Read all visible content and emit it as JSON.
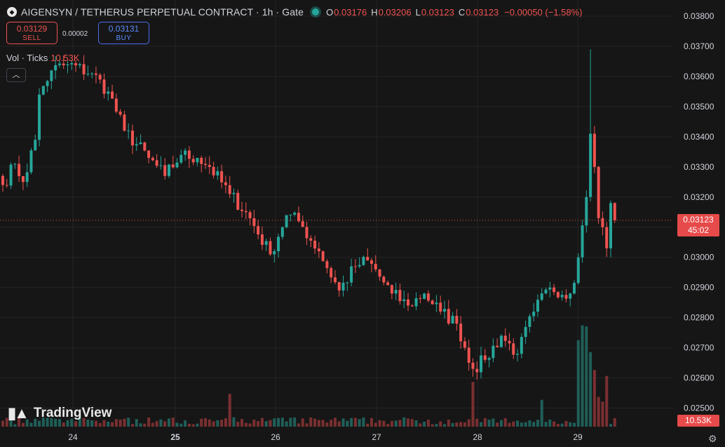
{
  "header": {
    "symbol_icon": "diamond-icon",
    "title": "AIGENSYN / TETHERUS PERPETUAL CONTRACT · 1h · Gate",
    "ohlc": [
      {
        "label": "O",
        "value": "0.03176"
      },
      {
        "label": "H",
        "value": "0.03206"
      },
      {
        "label": "L",
        "value": "0.03123"
      },
      {
        "label": "C",
        "value": "0.03123"
      }
    ],
    "change": "−0.00050 (−1.58%)"
  },
  "trade": {
    "sell_price": "0.03129",
    "sell_label": "SELL",
    "spread": "0.00002",
    "buy_price": "0.03131",
    "buy_label": "BUY"
  },
  "volume_legend": {
    "label": "Vol · Ticks",
    "value": "10.53K"
  },
  "collapse_icon": "chevron-up-icon",
  "logo_text": "TradingView",
  "badges": {
    "price": "0.03123",
    "countdown": "45:02",
    "volume": "10.53K"
  },
  "settings_icon": "gear-icon",
  "colors": {
    "up": "#26a69a",
    "down": "#ef5350",
    "background": "#161616",
    "grid": "#242424"
  },
  "chart_data": {
    "type": "candlestick",
    "y_ticks": [
      "0.02500",
      "0.02600",
      "0.02700",
      "0.02800",
      "0.02900",
      "0.03000",
      "0.03100",
      "0.03200",
      "0.03300",
      "0.03400",
      "0.03500",
      "0.03600",
      "0.03700",
      "0.03800"
    ],
    "ylim": [
      0.0245,
      0.0381
    ],
    "x_ticks": [
      "24",
      "25",
      "26",
      "27",
      "28",
      "29"
    ],
    "last_price": 0.03123,
    "grid": true,
    "anchors": [
      {
        "i": 0,
        "price": 0.0324
      },
      {
        "i": 3,
        "price": 0.0331
      },
      {
        "i": 5,
        "price": 0.0325
      },
      {
        "i": 8,
        "price": 0.0339
      },
      {
        "i": 9,
        "price": 0.0354
      },
      {
        "i": 12,
        "price": 0.0362
      },
      {
        "i": 16,
        "price": 0.0364
      },
      {
        "i": 22,
        "price": 0.0361
      },
      {
        "i": 26,
        "price": 0.0355
      },
      {
        "i": 30,
        "price": 0.0342
      },
      {
        "i": 36,
        "price": 0.0333
      },
      {
        "i": 40,
        "price": 0.0327
      },
      {
        "i": 44,
        "price": 0.0334
      },
      {
        "i": 48,
        "price": 0.0333
      },
      {
        "i": 51,
        "price": 0.033
      },
      {
        "i": 56,
        "price": 0.0321
      },
      {
        "i": 60,
        "price": 0.0315
      },
      {
        "i": 66,
        "price": 0.0301
      },
      {
        "i": 70,
        "price": 0.0314
      },
      {
        "i": 73,
        "price": 0.0312
      },
      {
        "i": 78,
        "price": 0.0302
      },
      {
        "i": 83,
        "price": 0.0289
      },
      {
        "i": 87,
        "price": 0.0297
      },
      {
        "i": 90,
        "price": 0.0299
      },
      {
        "i": 96,
        "price": 0.0288
      },
      {
        "i": 100,
        "price": 0.0284
      },
      {
        "i": 104,
        "price": 0.0288
      },
      {
        "i": 108,
        "price": 0.0282
      },
      {
        "i": 112,
        "price": 0.0278
      },
      {
        "i": 116,
        "price": 0.0263
      },
      {
        "i": 119,
        "price": 0.0266
      },
      {
        "i": 123,
        "price": 0.0274
      },
      {
        "i": 127,
        "price": 0.0268
      },
      {
        "i": 131,
        "price": 0.0282
      },
      {
        "i": 135,
        "price": 0.029
      },
      {
        "i": 140,
        "price": 0.0288
      },
      {
        "i": 142,
        "price": 0.03
      },
      {
        "i": 144,
        "price": 0.032
      },
      {
        "i": 145,
        "price": 0.0341
      },
      {
        "i": 146,
        "price": 0.033
      },
      {
        "i": 147,
        "price": 0.0313
      },
      {
        "i": 148,
        "price": 0.031
      },
      {
        "i": 149,
        "price": 0.0303
      },
      {
        "i": 150,
        "price": 0.0318
      },
      {
        "i": 151,
        "price": 0.03123
      }
    ],
    "spikes": [
      {
        "i": 145,
        "high": 0.0369
      }
    ],
    "volume_spikes": [
      {
        "i": 56,
        "v": 0.55
      },
      {
        "i": 116,
        "v": 0.75
      },
      {
        "i": 133,
        "v": 0.45
      },
      {
        "i": 142,
        "v": 1.45
      },
      {
        "i": 143,
        "v": 1.7
      },
      {
        "i": 144,
        "v": 1.68
      },
      {
        "i": 145,
        "v": 1.25
      },
      {
        "i": 146,
        "v": 0.95
      },
      {
        "i": 147,
        "v": 0.5
      },
      {
        "i": 148,
        "v": 0.42
      },
      {
        "i": 149,
        "v": 0.85
      }
    ]
  }
}
